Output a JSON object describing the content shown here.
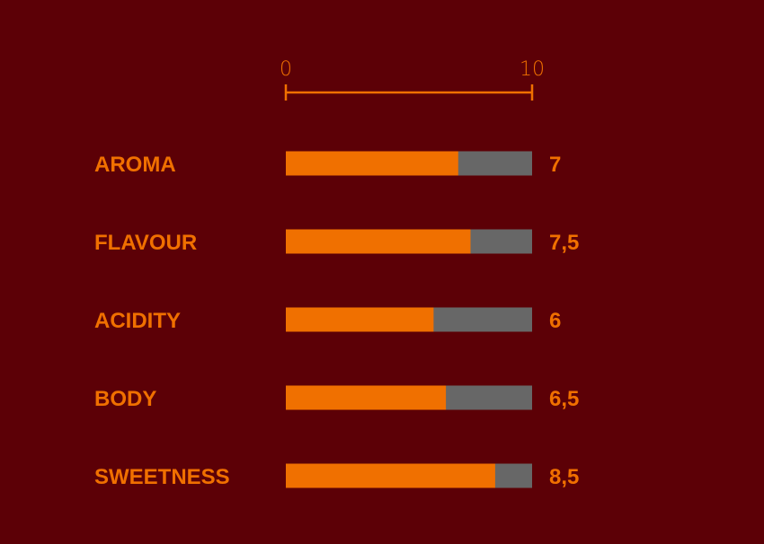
{
  "chart_data": {
    "type": "bar",
    "orientation": "horizontal",
    "categories": [
      "AROMA",
      "FLAVOUR",
      "ACIDITY",
      "BODY",
      "SWEETNESS"
    ],
    "values": [
      7,
      7.5,
      6,
      6.5,
      8.5
    ],
    "value_labels": [
      "7",
      "7,5",
      "6",
      "6,5",
      "8,5"
    ],
    "xlim": [
      0,
      10
    ],
    "ticks": [
      0,
      10
    ],
    "tick_labels": [
      "0",
      "10"
    ],
    "grid": false,
    "legend": "none",
    "colors": {
      "background": "#5c0006",
      "fill": "#f07000",
      "track": "#676767",
      "text": "#f07000",
      "axis": "#f07000"
    }
  }
}
